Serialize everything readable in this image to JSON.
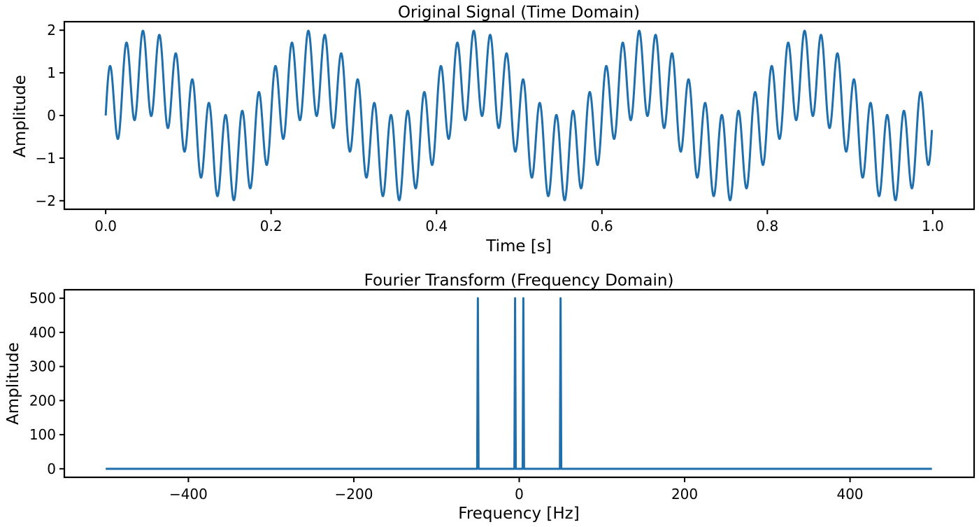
{
  "chart_data": [
    {
      "type": "line",
      "title": "Original Signal (Time Domain)",
      "xlabel": "Time [s]",
      "ylabel": "Amplitude",
      "xlim": [
        -0.05,
        1.05
      ],
      "ylim": [
        -2.2,
        2.2
      ],
      "xticks": [
        0.0,
        0.2,
        0.4,
        0.6,
        0.8,
        1.0
      ],
      "xtick_labels": [
        "0.0",
        "0.2",
        "0.4",
        "0.6",
        "0.8",
        "1.0"
      ],
      "yticks": [
        -2,
        -1,
        0,
        1,
        2
      ],
      "ytick_labels": [
        "−2",
        "−1",
        "0",
        "1",
        "2"
      ],
      "grid": false,
      "color": "#1f6fad",
      "series": [
        {
          "components": [
            {
              "frequency_hz": 5,
              "amplitude": 1
            },
            {
              "frequency_hz": 50,
              "amplitude": 1
            }
          ],
          "x_range": [
            0.0,
            0.999
          ]
        }
      ]
    },
    {
      "type": "line",
      "title": "Fourier Transform (Frequency Domain)",
      "xlabel": "Frequency [Hz]",
      "ylabel": "Amplitude",
      "xlim": [
        -550,
        550
      ],
      "ylim": [
        -25,
        525
      ],
      "xticks": [
        -400,
        -200,
        0,
        200,
        400
      ],
      "xtick_labels": [
        "−400",
        "−200",
        "0",
        "200",
        "400"
      ],
      "yticks": [
        0,
        100,
        200,
        300,
        400,
        500
      ],
      "ytick_labels": [
        "0",
        "100",
        "200",
        "300",
        "400",
        "500"
      ],
      "grid": false,
      "color": "#1f6fad",
      "series": [
        {
          "x_range": [
            -500,
            499
          ],
          "baseline": 0,
          "peaks": [
            {
              "x": -50,
              "y": 500
            },
            {
              "x": -5,
              "y": 500
            },
            {
              "x": 5,
              "y": 500
            },
            {
              "x": 50,
              "y": 500
            }
          ]
        }
      ]
    }
  ]
}
